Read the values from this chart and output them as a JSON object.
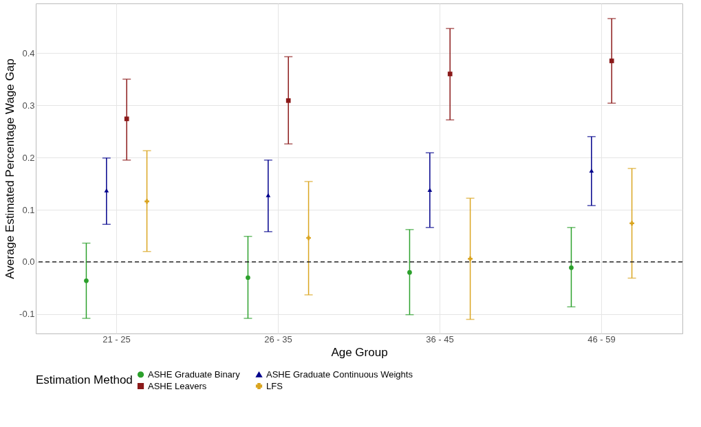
{
  "chart_data": {
    "type": "scatter",
    "xlabel": "Age Group",
    "ylabel": "Average Estimated Percentage Wage Gap",
    "legend_title": "Estimation Method",
    "categories": [
      "21 - 25",
      "26 - 35",
      "36 - 45",
      "46 - 59"
    ],
    "series": [
      {
        "name": "ASHE Graduate Binary",
        "color": "#2ca02c",
        "marker": "circle",
        "values": [
          -0.036,
          -0.03,
          -0.02,
          -0.011
        ],
        "errors": [
          [
            -0.108,
            0.036
          ],
          [
            -0.108,
            0.049
          ],
          [
            -0.101,
            0.062
          ],
          [
            -0.086,
            0.066
          ]
        ]
      },
      {
        "name": "ASHE Graduate Continuous Weights",
        "color": "#00008b",
        "marker": "triangle",
        "values": [
          0.137,
          0.128,
          0.138,
          0.175
        ],
        "errors": [
          [
            0.072,
            0.199
          ],
          [
            0.058,
            0.195
          ],
          [
            0.066,
            0.209
          ],
          [
            0.108,
            0.24
          ]
        ]
      },
      {
        "name": "ASHE Leavers",
        "color": "#8b1a1a",
        "marker": "square",
        "values": [
          0.274,
          0.309,
          0.36,
          0.385
        ],
        "errors": [
          [
            0.195,
            0.35
          ],
          [
            0.226,
            0.393
          ],
          [
            0.272,
            0.447
          ],
          [
            0.304,
            0.466
          ]
        ]
      },
      {
        "name": "LFS",
        "color": "#daa520",
        "marker": "cross",
        "values": [
          0.116,
          0.046,
          0.006,
          0.074
        ],
        "errors": [
          [
            0.02,
            0.213
          ],
          [
            -0.063,
            0.154
          ],
          [
            -0.11,
            0.122
          ],
          [
            -0.031,
            0.179
          ]
        ]
      }
    ],
    "ylim": [
      -0.137,
      0.495
    ],
    "yticks": [
      {
        "value": -0.1,
        "label": "-0.1"
      },
      {
        "value": 0,
        "label": "0.0"
      },
      0.1,
      0.2,
      0.3,
      0.4
    ],
    "ref_lines": [
      {
        "axis": "y",
        "value": 0,
        "color": "#000000",
        "line_style": "dashed"
      }
    ],
    "grid": true,
    "legend": "bottom"
  }
}
